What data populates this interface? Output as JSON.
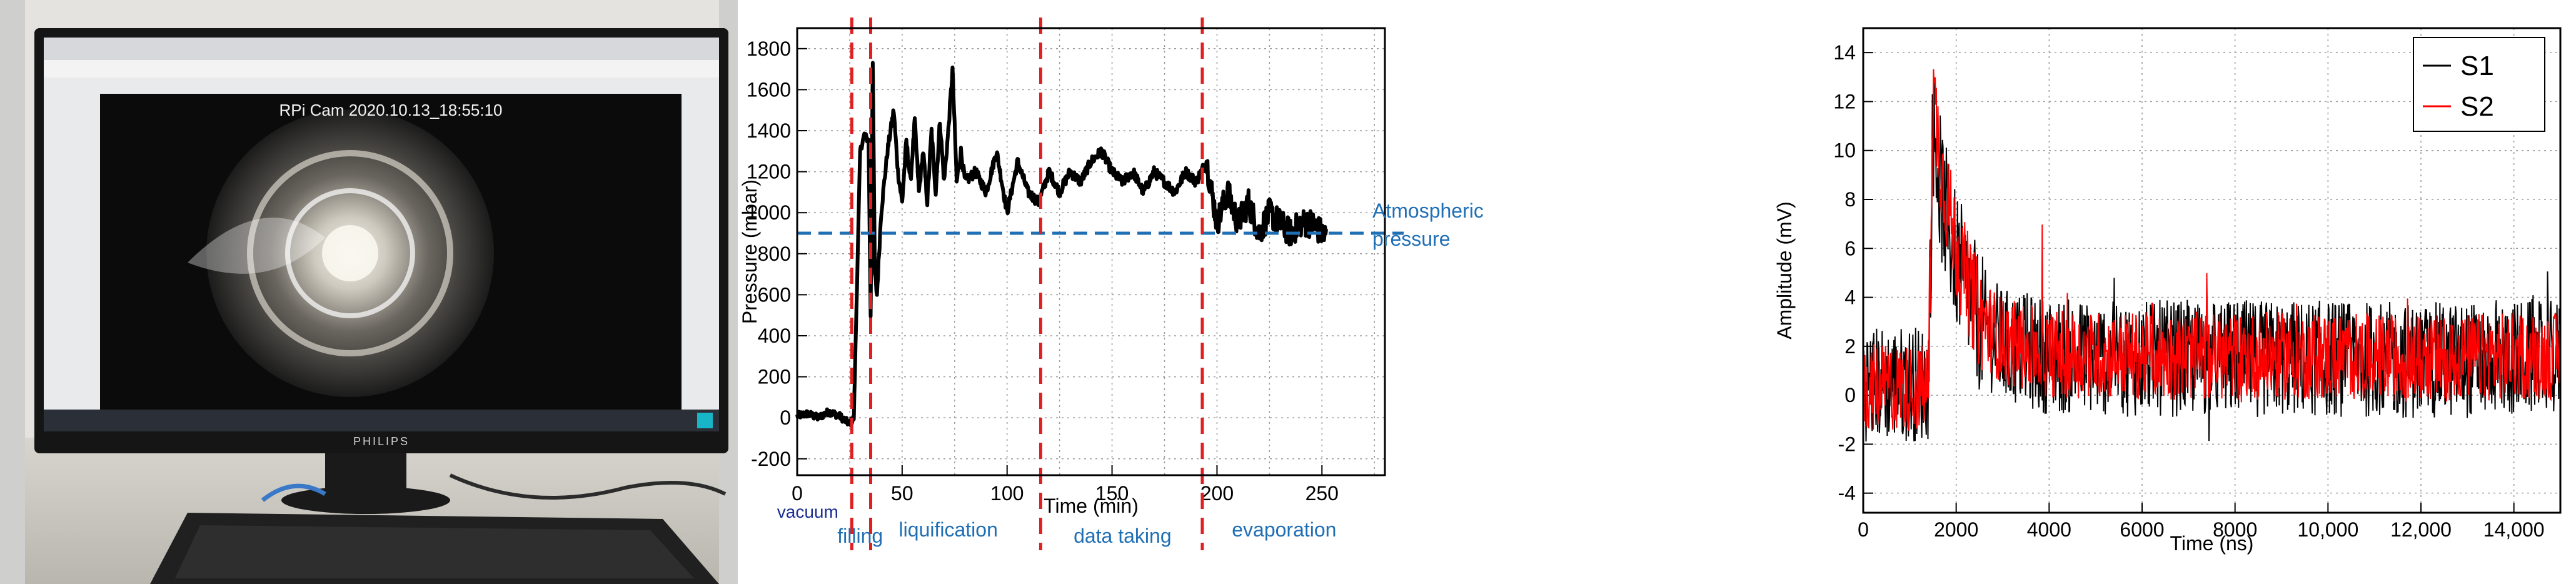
{
  "photo": {
    "overlay_text": "RPi Cam 2020.10.13_18:55:10",
    "monitor_brand": "PHILIPS"
  },
  "colors": {
    "pressure_trace": "#000000",
    "atmospheric_line": "#1f6fb5",
    "phase_boundaries": "#e02020",
    "s1": "#000000",
    "s2": "#ff0000"
  },
  "chart_data": [
    {
      "type": "line",
      "title": "",
      "xlabel": "Time (min)",
      "ylabel": "Pressure (mbar)",
      "xlim": [
        0,
        280
      ],
      "ylim": [
        -280,
        1900
      ],
      "x_ticks": [
        0,
        50,
        100,
        150,
        200,
        250
      ],
      "y_ticks": [
        -200,
        0,
        200,
        400,
        600,
        800,
        1000,
        1200,
        1400,
        1600,
        1800
      ],
      "grid": true,
      "series": [
        {
          "x": [
            0,
            5,
            10,
            15,
            20,
            25,
            27,
            30,
            32,
            34,
            35,
            36,
            37,
            38,
            40,
            43,
            46,
            48,
            50,
            52,
            54,
            56,
            58,
            60,
            62,
            64,
            66,
            68,
            70,
            72,
            74,
            76,
            78,
            80,
            85,
            90,
            95,
            100,
            105,
            110,
            115,
            120,
            125,
            130,
            135,
            140,
            145,
            150,
            155,
            160,
            165,
            170,
            175,
            180,
            185,
            190,
            195,
            200,
            205,
            210,
            215,
            220,
            225,
            230,
            235,
            240,
            245,
            250,
            252
          ],
          "values": [
            10,
            20,
            0,
            30,
            10,
            -30,
            0,
            1300,
            1380,
            1350,
            500,
            1750,
            700,
            600,
            1000,
            1300,
            1500,
            1200,
            1050,
            1350,
            1150,
            1450,
            1100,
            1300,
            1050,
            1400,
            1100,
            1450,
            1150,
            1400,
            1700,
            1150,
            1300,
            1150,
            1200,
            1100,
            1300,
            1000,
            1250,
            1100,
            1050,
            1200,
            1100,
            1200,
            1150,
            1250,
            1300,
            1200,
            1150,
            1200,
            1100,
            1200,
            1150,
            1100,
            1200,
            1150,
            1250,
            950,
            1100,
            950,
            1050,
            900,
            1000,
            950,
            900,
            950,
            950,
            900,
            880
          ]
        }
      ],
      "annotations": {
        "atmospheric": {
          "value": 900,
          "label_line1": "Atmospheric",
          "label_line2": "pressure"
        },
        "phase_boundaries": [
          26,
          35,
          116,
          193
        ],
        "phases": [
          {
            "label": "vacuum",
            "x": 5
          },
          {
            "label": "filling",
            "x": 30
          },
          {
            "label": "liquification",
            "x": 72
          },
          {
            "label": "data taking",
            "x": 155
          },
          {
            "label": "evaporation",
            "x": 232
          }
        ]
      }
    },
    {
      "type": "line",
      "title": "",
      "xlabel": "Time (ns)",
      "ylabel": "Amplitude (mV)",
      "xlim": [
        0,
        15000
      ],
      "ylim": [
        -4.8,
        15
      ],
      "x_ticks": [
        0,
        2000,
        4000,
        6000,
        8000,
        10000,
        12000,
        14000
      ],
      "x_tick_labels": [
        "0",
        "2000",
        "4000",
        "6000",
        "8000",
        "10,000",
        "12,000",
        "14,000"
      ],
      "y_ticks": [
        -4,
        -2,
        0,
        2,
        4,
        6,
        8,
        10,
        12,
        14
      ],
      "grid": true,
      "legend": "top-right",
      "series": [
        {
          "name": "S1",
          "x": [
            0,
            1400,
            1500,
            1700,
            2000,
            2500,
            3000,
            4000,
            6000,
            8000,
            10000,
            12000,
            14000,
            15000
          ],
          "values": [
            0.5,
            0.5,
            11.0,
            8.0,
            5.5,
            3.0,
            2.0,
            1.6,
            1.5,
            1.5,
            1.5,
            1.4,
            1.5,
            1.5
          ]
        },
        {
          "name": "S2",
          "x": [
            0,
            1400,
            1500,
            1700,
            2000,
            2500,
            3000,
            4000,
            6000,
            8000,
            10000,
            12000,
            14000,
            15000
          ],
          "values": [
            0.3,
            0.3,
            12.5,
            9.0,
            6.0,
            3.2,
            2.2,
            1.7,
            1.6,
            1.6,
            1.6,
            1.5,
            1.6,
            1.6
          ]
        }
      ]
    }
  ]
}
